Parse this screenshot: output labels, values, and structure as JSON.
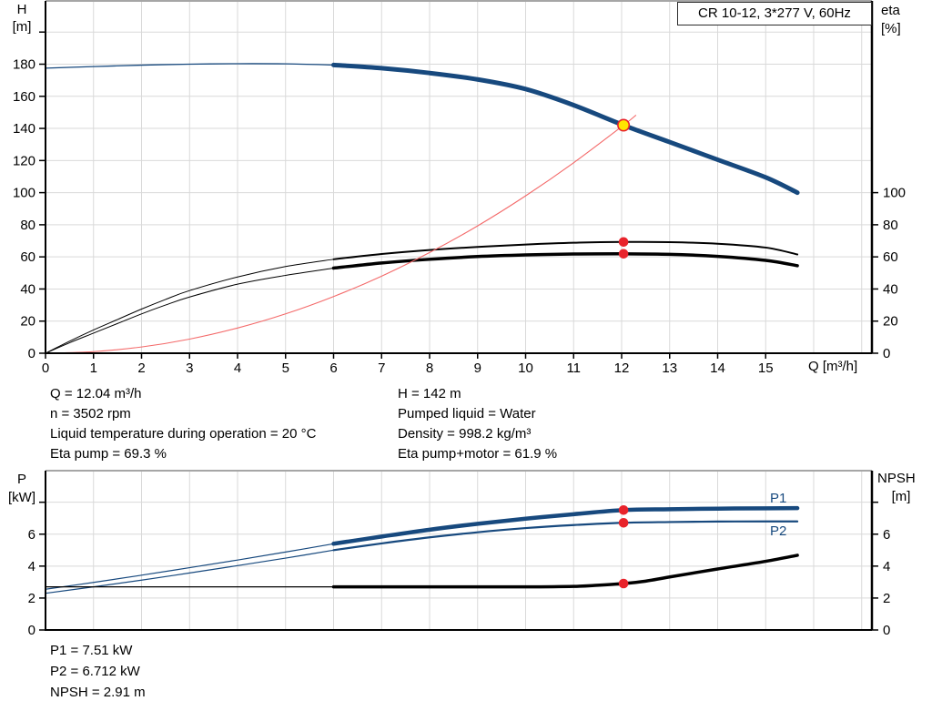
{
  "title_box": {
    "label": "CR 10-12, 3*277 V, 60Hz"
  },
  "colors": {
    "blue": "#17497e",
    "black": "#000000",
    "red_line": "#f46a6a",
    "red_dot": "#e8232b",
    "yellow": "#ffe400",
    "grid": "#d9d9d9",
    "axis": "#000000",
    "border_gray": "#a6a6a6"
  },
  "axes_labels": {
    "h": "H",
    "h_unit": "[m]",
    "eta": "eta",
    "eta_unit": "[%]",
    "q": "Q [m³/h]",
    "p": "P",
    "p_unit": "[kW]",
    "npsh": "NPSH",
    "npsh_unit": "[m]",
    "p1": "P1",
    "p2": "P2"
  },
  "operating_data": {
    "left": [
      "Q = 12.04 m³/h",
      "n = 3502 rpm",
      "Liquid temperature during operation = 20 °C",
      "Eta pump = 69.3 %"
    ],
    "right": [
      "H = 142 m",
      "Pumped liquid = Water",
      "Density = 998.2 kg/m³",
      "Eta pump+motor = 61.9 %"
    ],
    "bottom": [
      "P1 = 7.51 kW",
      "P2 = 6.712 kW",
      "NPSH = 2.91 m"
    ]
  },
  "chart_data": [
    {
      "type": "line",
      "title": "CR 10-12, 3*277 V, 60Hz",
      "x_axis": {
        "label": "Q [m³/h]",
        "min": 0,
        "max": 17.2,
        "tick_values": [
          0,
          1,
          2,
          3,
          4,
          5,
          6,
          7,
          8,
          9,
          10,
          11,
          12,
          13,
          14,
          15
        ],
        "tick_labels": [
          "0",
          "1",
          "2",
          "3",
          "4",
          "5",
          "6",
          "7",
          "8",
          "9",
          "10",
          "11",
          "12",
          "13",
          "14",
          "15"
        ],
        "grid": [
          1,
          2,
          3,
          4,
          5,
          6,
          7,
          8,
          9,
          10,
          11,
          12,
          13,
          14,
          15,
          16,
          17
        ]
      },
      "y_left": {
        "label": "H [m]",
        "min": 0,
        "max": 220,
        "tick_values": [
          0,
          20,
          40,
          60,
          80,
          100,
          120,
          140,
          160,
          180,
          200
        ],
        "tick_labels": [
          "0",
          "20",
          "40",
          "60",
          "80",
          "100",
          "120",
          "140",
          "160",
          "180",
          ""
        ],
        "grid": [
          20,
          40,
          60,
          80,
          100,
          120,
          140,
          160,
          180,
          200
        ]
      },
      "y_right": {
        "label": "eta [%]",
        "min": 0,
        "max": 100,
        "tick_values": [
          0,
          20,
          40,
          60,
          80,
          100
        ],
        "tick_labels": [
          "0",
          "20",
          "40",
          "60",
          "80",
          "100"
        ]
      },
      "series": [
        {
          "name": "head-curve",
          "axis": "left",
          "color": "blue",
          "split": 6,
          "w_thin": 1.3,
          "w_thick": 5,
          "points": [
            [
              0,
              177.5
            ],
            [
              1,
              178.5
            ],
            [
              2,
              179.4
            ],
            [
              3,
              180.0
            ],
            [
              4,
              180.3
            ],
            [
              5,
              180.2
            ],
            [
              6,
              179.5
            ],
            [
              7,
              177.5
            ],
            [
              8,
              174.5
            ],
            [
              9,
              170.5
            ],
            [
              10,
              164.5
            ],
            [
              11,
              154.5
            ],
            [
              12.04,
              142
            ],
            [
              13,
              131.5
            ],
            [
              14,
              120.5
            ],
            [
              15,
              109.5
            ],
            [
              15.66,
              100
            ]
          ]
        },
        {
          "name": "eta-pump-curve",
          "axis": "right",
          "color": "black",
          "split": 6,
          "w_thin": 1,
          "w_thick": 2,
          "points": [
            [
              0,
              0
            ],
            [
              0.5,
              7.5
            ],
            [
              1,
              14.5
            ],
            [
              1.5,
              21
            ],
            [
              2,
              27.5
            ],
            [
              2.5,
              33.5
            ],
            [
              3,
              39
            ],
            [
              4,
              47.5
            ],
            [
              5,
              54
            ],
            [
              6,
              58.5
            ],
            [
              7,
              61.8
            ],
            [
              8,
              64.3
            ],
            [
              9,
              66.2
            ],
            [
              10,
              67.7
            ],
            [
              11,
              68.8
            ],
            [
              12.04,
              69.3
            ],
            [
              13,
              69.2
            ],
            [
              14,
              68.2
            ],
            [
              15,
              65.8
            ],
            [
              15.66,
              61.5
            ]
          ]
        },
        {
          "name": "eta-pump-motor-curve",
          "axis": "right",
          "color": "black",
          "split": 6,
          "w_thin": 1,
          "w_thick": 3.5,
          "points": [
            [
              0,
              0
            ],
            [
              0.5,
              6.5
            ],
            [
              1,
              12.5
            ],
            [
              1.5,
              18.5
            ],
            [
              2,
              24.5
            ],
            [
              2.5,
              30
            ],
            [
              3,
              35
            ],
            [
              4,
              43
            ],
            [
              5,
              48.5
            ],
            [
              6,
              53
            ],
            [
              7,
              56.2
            ],
            [
              8,
              58.5
            ],
            [
              9,
              60.2
            ],
            [
              10,
              61.2
            ],
            [
              11,
              61.8
            ],
            [
              12.04,
              61.9
            ],
            [
              13,
              61.6
            ],
            [
              14,
              60.3
            ],
            [
              15,
              57.8
            ],
            [
              15.66,
              54.5
            ]
          ]
        },
        {
          "name": "system-curve",
          "axis": "left",
          "color": "red_line",
          "split": 99,
          "w_thin": 1.1,
          "w_thick": 1.1,
          "points": [
            [
              0,
              0
            ],
            [
              1,
              1.0
            ],
            [
              2,
              3.9
            ],
            [
              3,
              8.8
            ],
            [
              4,
              15.7
            ],
            [
              5,
              24.5
            ],
            [
              6,
              35.3
            ],
            [
              7,
              48
            ],
            [
              8,
              62.7
            ],
            [
              9,
              79.3
            ],
            [
              10,
              98
            ],
            [
              11,
              118.6
            ],
            [
              12.04,
              142
            ],
            [
              12.3,
              148.3
            ]
          ]
        }
      ],
      "markers": [
        {
          "name": "duty-point",
          "q": 12.04,
          "value": 142,
          "axis": "left",
          "style": "duty"
        },
        {
          "name": "eta-pump-point",
          "q": 12.04,
          "value": 69.3,
          "axis": "right",
          "style": "dot"
        },
        {
          "name": "eta-pump-motor-point",
          "q": 12.04,
          "value": 61.9,
          "axis": "right",
          "style": "dot"
        }
      ]
    },
    {
      "type": "line",
      "title": "Power and NPSH curves",
      "x_axis": {
        "label": "Q [m³/h]",
        "min": 0,
        "max": 17.2,
        "tick_values": [],
        "tick_labels": [],
        "grid": [
          1,
          2,
          3,
          4,
          5,
          6,
          7,
          8,
          9,
          10,
          11,
          12,
          13,
          14,
          15,
          16,
          17
        ]
      },
      "y_left": {
        "label": "P [kW]",
        "min": 0,
        "max": 10,
        "tick_values": [
          0,
          2,
          4,
          6,
          8
        ],
        "tick_labels": [
          "0",
          "2",
          "4",
          "6",
          ""
        ],
        "grid": [
          2,
          4,
          6,
          8
        ]
      },
      "y_right": {
        "label": "NPSH [m]",
        "min": 0,
        "max": 10,
        "tick_values": [
          0,
          2,
          4,
          6,
          8
        ],
        "tick_labels": [
          "0",
          "2",
          "4",
          "6",
          ""
        ]
      },
      "series": [
        {
          "name": "p1-curve",
          "axis": "left",
          "color": "blue",
          "split": 6,
          "w_thin": 1.2,
          "w_thick": 4.5,
          "points": [
            [
              0,
              2.55
            ],
            [
              1,
              2.98
            ],
            [
              2,
              3.43
            ],
            [
              3,
              3.9
            ],
            [
              4,
              4.38
            ],
            [
              5,
              4.88
            ],
            [
              6,
              5.4
            ],
            [
              7,
              5.85
            ],
            [
              8,
              6.28
            ],
            [
              9,
              6.65
            ],
            [
              10,
              6.97
            ],
            [
              11,
              7.25
            ],
            [
              12.04,
              7.51
            ],
            [
              13,
              7.56
            ],
            [
              14,
              7.6
            ],
            [
              15,
              7.62
            ],
            [
              15.66,
              7.63
            ]
          ]
        },
        {
          "name": "p2-curve",
          "axis": "left",
          "color": "blue",
          "split": 6,
          "w_thin": 1.2,
          "w_thick": 2.2,
          "points": [
            [
              0,
              2.3
            ],
            [
              1,
              2.7
            ],
            [
              2,
              3.12
            ],
            [
              3,
              3.57
            ],
            [
              4,
              4.03
            ],
            [
              5,
              4.5
            ],
            [
              6,
              5.0
            ],
            [
              7,
              5.42
            ],
            [
              8,
              5.8
            ],
            [
              9,
              6.12
            ],
            [
              10,
              6.38
            ],
            [
              11,
              6.57
            ],
            [
              12.04,
              6.712
            ],
            [
              13,
              6.76
            ],
            [
              14,
              6.79
            ],
            [
              15,
              6.8
            ],
            [
              15.66,
              6.8
            ]
          ]
        },
        {
          "name": "npsh-curve",
          "axis": "right",
          "color": "black",
          "split": 6,
          "w_thin": 1.2,
          "w_thick": 3.5,
          "points": [
            [
              0,
              2.7
            ],
            [
              2,
              2.7
            ],
            [
              4,
              2.7
            ],
            [
              6,
              2.7
            ],
            [
              8,
              2.7
            ],
            [
              10,
              2.7
            ],
            [
              11,
              2.73
            ],
            [
              11.5,
              2.8
            ],
            [
              12.04,
              2.91
            ],
            [
              12.5,
              3.06
            ],
            [
              13,
              3.32
            ],
            [
              14,
              3.82
            ],
            [
              15,
              4.3
            ],
            [
              15.66,
              4.68
            ]
          ]
        }
      ],
      "markers": [
        {
          "name": "p1-point",
          "q": 12.04,
          "value": 7.51,
          "axis": "left",
          "style": "dot"
        },
        {
          "name": "p2-point",
          "q": 12.04,
          "value": 6.712,
          "axis": "left",
          "style": "dot"
        },
        {
          "name": "npsh-point",
          "q": 12.04,
          "value": 2.91,
          "axis": "right",
          "style": "dot"
        }
      ]
    }
  ]
}
